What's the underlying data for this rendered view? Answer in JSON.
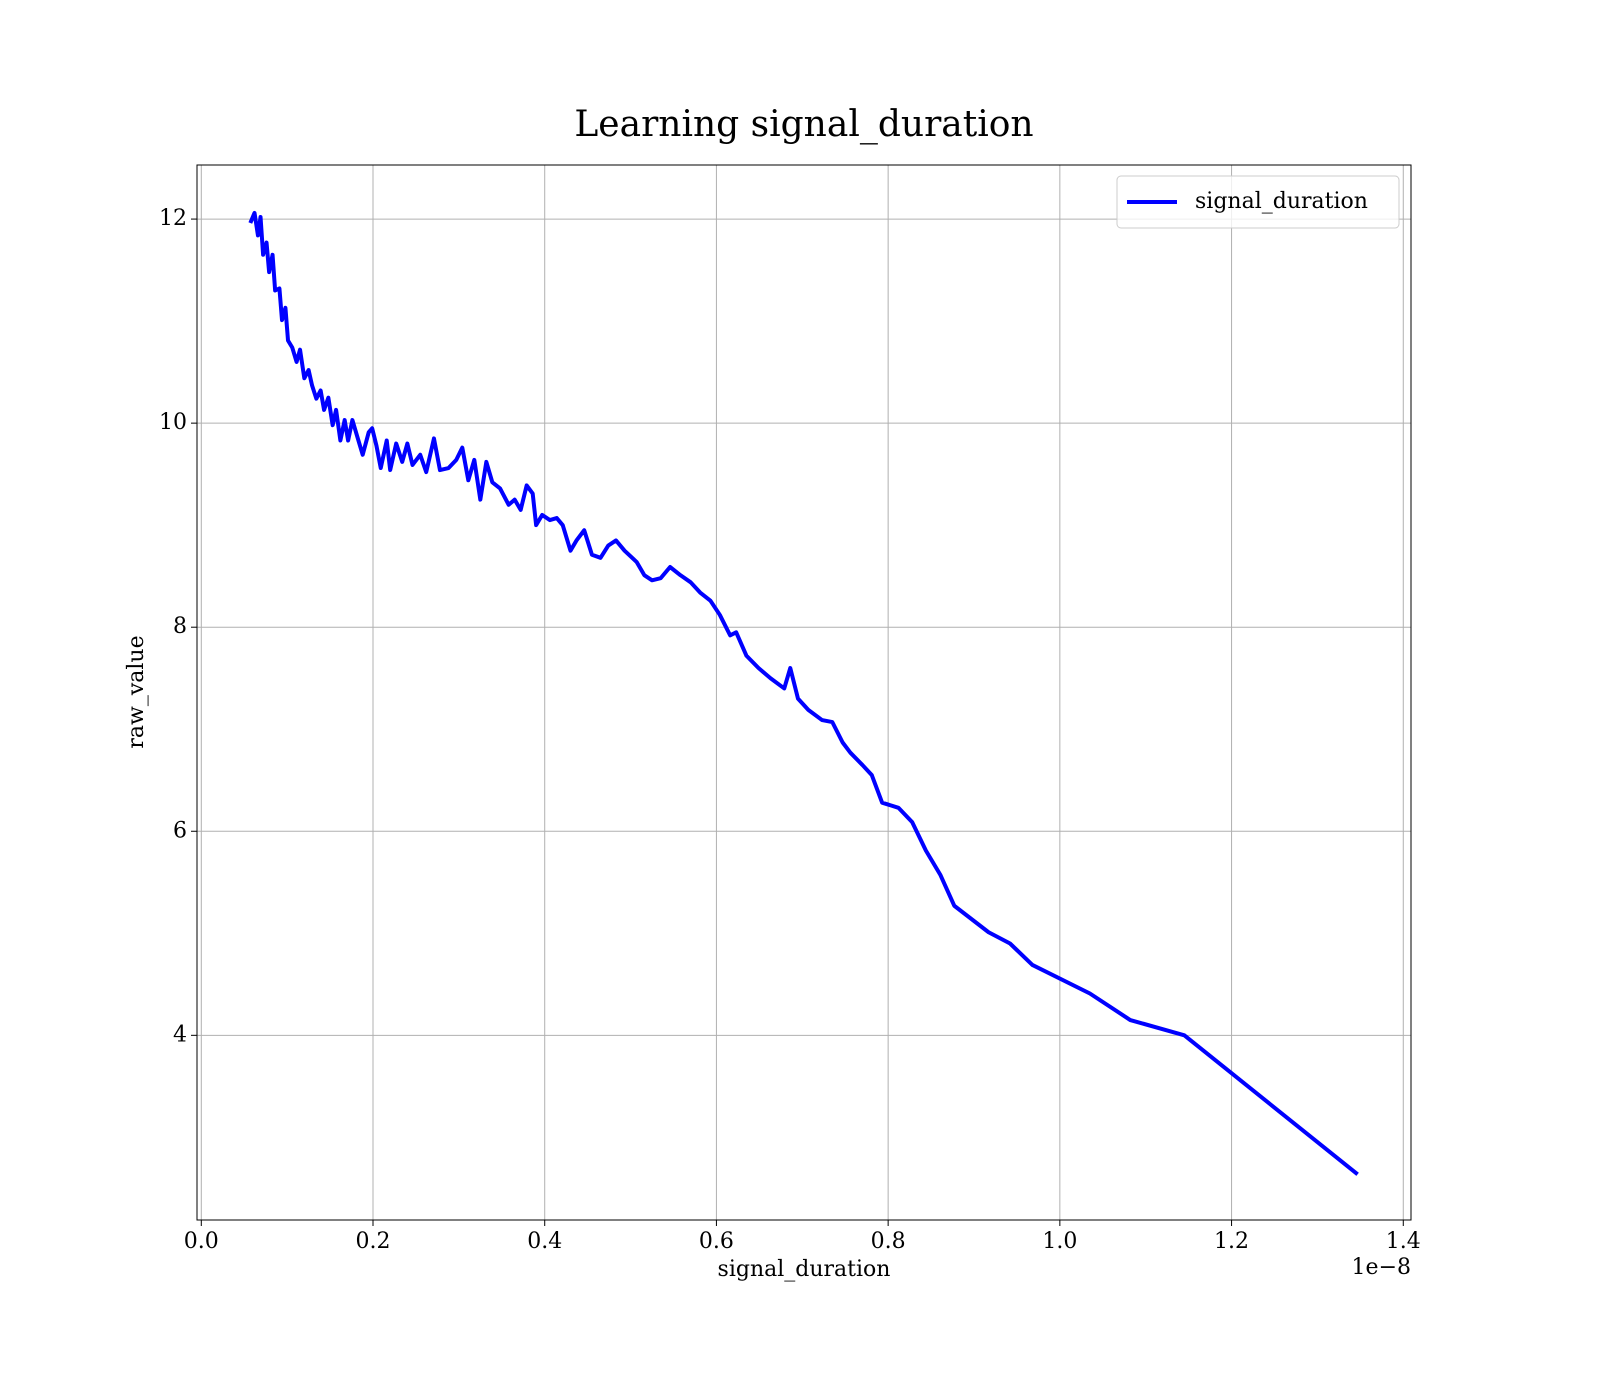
{
  "chart_data": {
    "type": "line",
    "title": "Learning signal_duration",
    "xlabel": "signal_duration",
    "ylabel": "raw_value",
    "x_offset_label": "1e−8",
    "x": [
      0.058,
      0.062,
      0.066,
      0.069,
      0.072,
      0.076,
      0.079,
      0.083,
      0.086,
      0.091,
      0.094,
      0.098,
      0.101,
      0.106,
      0.111,
      0.115,
      0.12,
      0.125,
      0.129,
      0.134,
      0.139,
      0.143,
      0.148,
      0.153,
      0.157,
      0.162,
      0.167,
      0.171,
      0.176,
      0.183,
      0.188,
      0.195,
      0.199,
      0.204,
      0.209,
      0.216,
      0.22,
      0.227,
      0.234,
      0.24,
      0.246,
      0.255,
      0.262,
      0.271,
      0.278,
      0.288,
      0.297,
      0.304,
      0.311,
      0.318,
      0.325,
      0.332,
      0.339,
      0.348,
      0.358,
      0.365,
      0.372,
      0.379,
      0.386,
      0.39,
      0.397,
      0.406,
      0.414,
      0.421,
      0.43,
      0.437,
      0.446,
      0.455,
      0.465,
      0.474,
      0.483,
      0.493,
      0.507,
      0.516,
      0.525,
      0.535,
      0.546,
      0.558,
      0.57,
      0.581,
      0.593,
      0.604,
      0.616,
      0.623,
      0.635,
      0.649,
      0.663,
      0.679,
      0.686,
      0.695,
      0.707,
      0.723,
      0.735,
      0.747,
      0.756,
      0.77,
      0.781,
      0.793,
      0.812,
      0.828,
      0.844,
      0.861,
      0.877,
      0.917,
      0.942,
      0.968,
      1.035,
      1.082,
      1.145,
      1.345
    ],
    "series": [
      {
        "name": "signal_duration",
        "color": "#0000ff",
        "values": [
          11.98,
          12.06,
          11.84,
          12.02,
          11.65,
          11.77,
          11.48,
          11.65,
          11.3,
          11.32,
          11.01,
          11.13,
          10.81,
          10.74,
          10.6,
          10.72,
          10.44,
          10.52,
          10.37,
          10.24,
          10.32,
          10.13,
          10.25,
          9.98,
          10.13,
          9.83,
          10.03,
          9.83,
          10.03,
          9.83,
          9.69,
          9.91,
          9.95,
          9.78,
          9.56,
          9.83,
          9.54,
          9.8,
          9.62,
          9.8,
          9.59,
          9.69,
          9.52,
          9.85,
          9.54,
          9.56,
          9.64,
          9.76,
          9.44,
          9.64,
          9.25,
          9.62,
          9.42,
          9.36,
          9.2,
          9.25,
          9.15,
          9.39,
          9.31,
          9.0,
          9.1,
          9.05,
          9.07,
          9.0,
          8.75,
          8.85,
          8.95,
          8.71,
          8.68,
          8.8,
          8.85,
          8.75,
          8.64,
          8.51,
          8.46,
          8.48,
          8.59,
          8.51,
          8.44,
          8.34,
          8.26,
          8.12,
          7.92,
          7.95,
          7.72,
          7.6,
          7.5,
          7.4,
          7.6,
          7.3,
          7.19,
          7.09,
          7.07,
          6.87,
          6.77,
          6.65,
          6.55,
          6.28,
          6.23,
          6.09,
          5.81,
          5.57,
          5.27,
          5.01,
          4.9,
          4.69,
          4.41,
          4.15,
          4.0,
          2.65
        ]
      }
    ],
    "xlim": [
      -0.005,
      1.409
    ],
    "ylim": [
      2.19,
      12.53
    ],
    "xticks": [
      {
        "value": 0,
        "label": "0.0"
      },
      0.2,
      0.4,
      0.6,
      0.8,
      {
        "value": 1,
        "label": "1.0"
      },
      1.2,
      1.4
    ],
    "yticks": [
      4,
      6,
      8,
      10,
      12
    ],
    "grid": true,
    "legend": "upper right"
  }
}
